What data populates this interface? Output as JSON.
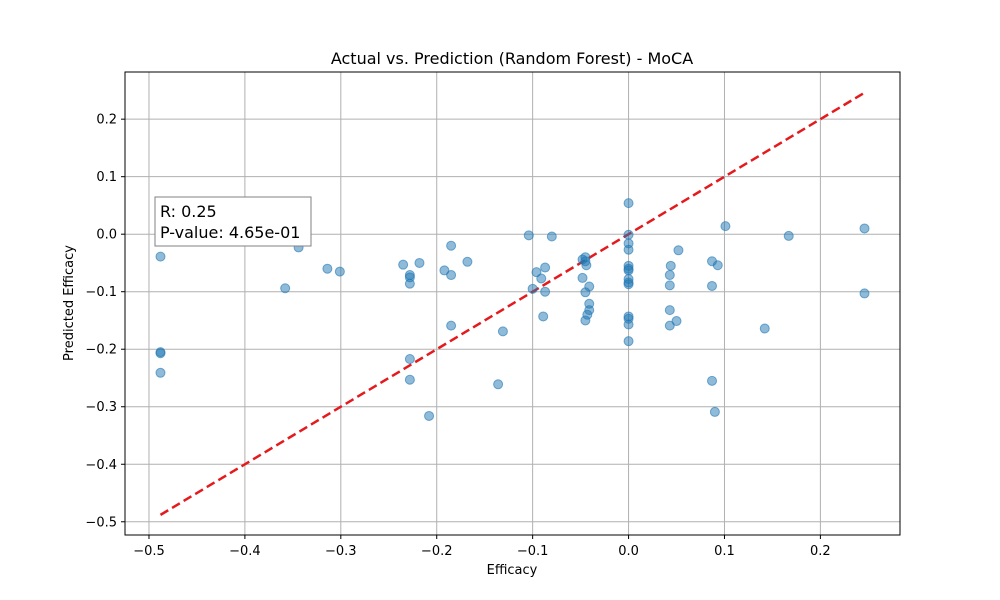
{
  "chart_data": {
    "type": "scatter",
    "title": "Actual vs. Prediction (Random Forest) - MoCA",
    "xlabel": "Efficacy",
    "ylabel": "Predicted  Efficacy",
    "xlim": [
      -0.525,
      0.283
    ],
    "ylim": [
      -0.523,
      0.282
    ],
    "xticks": [
      -0.5,
      -0.4,
      -0.3,
      -0.2,
      -0.1,
      0.0,
      0.1,
      0.2
    ],
    "xtick_labels": [
      "−0.5",
      "−0.4",
      "−0.3",
      "−0.2",
      "−0.1",
      "0.0",
      "0.1",
      "0.2"
    ],
    "yticks": [
      0.2,
      0.1,
      0.0,
      -0.1,
      -0.2,
      -0.3,
      -0.4,
      -0.5
    ],
    "ytick_labels": [
      "0.2",
      "0.1",
      "0.0",
      "−0.1",
      "−0.2",
      "−0.3",
      "−0.4",
      "−0.5"
    ],
    "grid": true,
    "point_color": "#1f77b4",
    "line_color": "#e41a1c",
    "reference_line": {
      "x": [
        -0.488,
        0.245
      ],
      "y": [
        -0.488,
        0.245
      ],
      "style": "dashed"
    },
    "annotation": {
      "lines": [
        "R: 0.25",
        "P-value: 4.65e-01"
      ]
    },
    "points": [
      {
        "x": -0.488,
        "y": -0.039
      },
      {
        "x": -0.488,
        "y": -0.205
      },
      {
        "x": -0.488,
        "y": -0.207
      },
      {
        "x": -0.488,
        "y": -0.241
      },
      {
        "x": -0.344,
        "y": -0.023
      },
      {
        "x": -0.358,
        "y": -0.094
      },
      {
        "x": -0.314,
        "y": -0.06
      },
      {
        "x": -0.301,
        "y": -0.065
      },
      {
        "x": -0.235,
        "y": -0.053
      },
      {
        "x": -0.228,
        "y": -0.071
      },
      {
        "x": -0.228,
        "y": -0.075
      },
      {
        "x": -0.228,
        "y": -0.086
      },
      {
        "x": -0.218,
        "y": -0.05
      },
      {
        "x": -0.228,
        "y": -0.217
      },
      {
        "x": -0.228,
        "y": -0.253
      },
      {
        "x": -0.208,
        "y": -0.316
      },
      {
        "x": -0.192,
        "y": -0.063
      },
      {
        "x": -0.185,
        "y": -0.02
      },
      {
        "x": -0.185,
        "y": -0.071
      },
      {
        "x": -0.185,
        "y": -0.159
      },
      {
        "x": -0.168,
        "y": -0.048
      },
      {
        "x": -0.136,
        "y": -0.261
      },
      {
        "x": -0.131,
        "y": -0.169
      },
      {
        "x": -0.104,
        "y": -0.002
      },
      {
        "x": -0.1,
        "y": -0.095
      },
      {
        "x": -0.096,
        "y": -0.066
      },
      {
        "x": -0.091,
        "y": -0.077
      },
      {
        "x": -0.089,
        "y": -0.143
      },
      {
        "x": -0.087,
        "y": -0.058
      },
      {
        "x": -0.087,
        "y": -0.1
      },
      {
        "x": -0.08,
        "y": -0.004
      },
      {
        "x": -0.048,
        "y": -0.044
      },
      {
        "x": -0.048,
        "y": -0.076
      },
      {
        "x": -0.045,
        "y": -0.04
      },
      {
        "x": -0.045,
        "y": -0.047
      },
      {
        "x": -0.044,
        "y": -0.054
      },
      {
        "x": -0.045,
        "y": -0.101
      },
      {
        "x": -0.041,
        "y": -0.091
      },
      {
        "x": -0.041,
        "y": -0.121
      },
      {
        "x": -0.041,
        "y": -0.132
      },
      {
        "x": -0.043,
        "y": -0.14
      },
      {
        "x": -0.045,
        "y": -0.15
      },
      {
        "x": 0.0,
        "y": 0.054
      },
      {
        "x": 0.0,
        "y": -0.001
      },
      {
        "x": 0.0,
        "y": -0.016
      },
      {
        "x": 0.0,
        "y": -0.027
      },
      {
        "x": 0.0,
        "y": -0.055
      },
      {
        "x": 0.0,
        "y": -0.06
      },
      {
        "x": 0.0,
        "y": -0.063
      },
      {
        "x": 0.0,
        "y": -0.078
      },
      {
        "x": 0.0,
        "y": -0.084
      },
      {
        "x": 0.0,
        "y": -0.087
      },
      {
        "x": 0.0,
        "y": -0.143
      },
      {
        "x": 0.0,
        "y": -0.147
      },
      {
        "x": 0.0,
        "y": -0.157
      },
      {
        "x": 0.0,
        "y": -0.186
      },
      {
        "x": 0.043,
        "y": -0.071
      },
      {
        "x": 0.044,
        "y": -0.055
      },
      {
        "x": 0.043,
        "y": -0.089
      },
      {
        "x": 0.043,
        "y": -0.132
      },
      {
        "x": 0.043,
        "y": -0.159
      },
      {
        "x": 0.05,
        "y": -0.151
      },
      {
        "x": 0.052,
        "y": -0.028
      },
      {
        "x": 0.087,
        "y": -0.047
      },
      {
        "x": 0.093,
        "y": -0.054
      },
      {
        "x": 0.087,
        "y": -0.09
      },
      {
        "x": 0.087,
        "y": -0.255
      },
      {
        "x": 0.09,
        "y": -0.309
      },
      {
        "x": 0.101,
        "y": 0.014
      },
      {
        "x": 0.142,
        "y": -0.164
      },
      {
        "x": 0.167,
        "y": -0.003
      },
      {
        "x": 0.246,
        "y": 0.01
      },
      {
        "x": 0.246,
        "y": -0.103
      }
    ]
  }
}
